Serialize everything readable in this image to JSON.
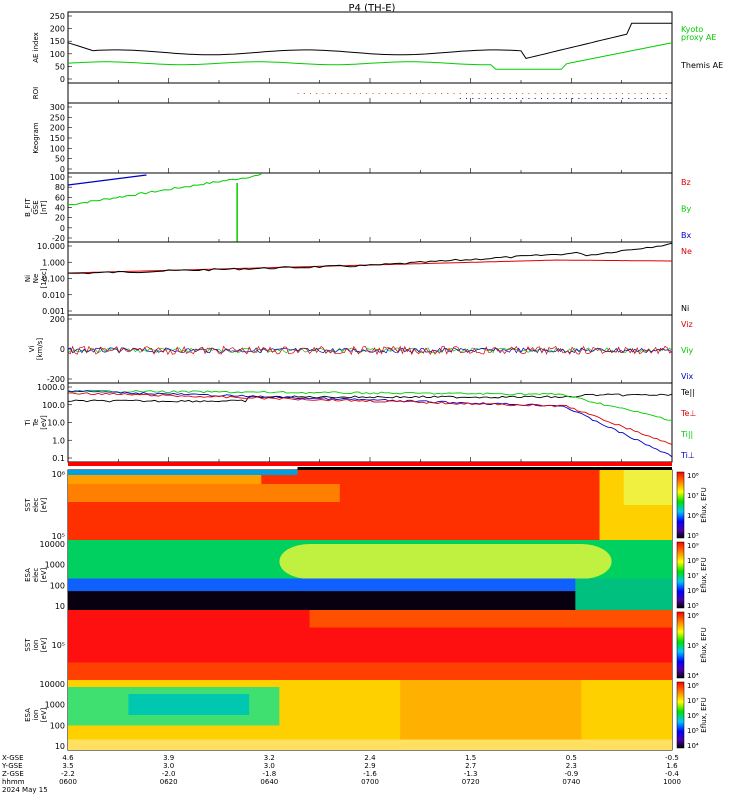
{
  "title": "P4 (TH-E)",
  "chart_data": {
    "type": "line",
    "title": "P4 (TH-E)",
    "date": "2024 May 15",
    "time_ticks": [
      "0600",
      "0620",
      "0640",
      "0700",
      "0720",
      "0740",
      "1000"
    ],
    "ephemeris_rows": [
      {
        "label": "X-GSE",
        "values": [
          "4.6",
          "3.9",
          "3.2",
          "2.4",
          "1.5",
          "0.5",
          "-0.5"
        ]
      },
      {
        "label": "Y-GSE",
        "values": [
          "3.5",
          "3.0",
          "3.0",
          "2.9",
          "2.7",
          "2.3",
          "1.6"
        ]
      },
      {
        "label": "Z-GSE",
        "values": [
          "-2.2",
          "-2.0",
          "-1.8",
          "-1.6",
          "-1.3",
          "-0.9",
          "-0.4"
        ]
      },
      {
        "label": "hhmm",
        "values": [
          "0600",
          "0620",
          "0640",
          "0700",
          "0720",
          "0740",
          "1000"
        ]
      }
    ],
    "panels": [
      {
        "id": "ae",
        "ylabel": "AE index",
        "yticks": [
          "250",
          "200",
          "150",
          "100",
          "50",
          "0"
        ],
        "series": [
          {
            "name": "Themis AE",
            "color": "#000000"
          },
          {
            "name": "Kyoto proxy AE",
            "color": "#00cc00"
          }
        ],
        "legend": [
          "Kyoto",
          "proxy AE",
          "Themis AE"
        ]
      },
      {
        "id": "roi",
        "ylabel": "ROI",
        "yticks": []
      },
      {
        "id": "keogram",
        "ylabel": "Keogram",
        "yticks": [
          "300",
          "250",
          "200",
          "150",
          "100",
          "50",
          "0"
        ]
      },
      {
        "id": "bfield",
        "ylabel": "B_FIT\nGSE\n[nT]",
        "yticks": [
          "100",
          "80",
          "60",
          "40",
          "20",
          "0",
          "-20"
        ],
        "legend": [
          {
            "name": "Bz",
            "color": "#dd0000"
          },
          {
            "name": "By",
            "color": "#00cc00"
          },
          {
            "name": "Bx",
            "color": "#0000cc"
          }
        ]
      },
      {
        "id": "density",
        "ylabel": "Ni\nNe\n[1/cc]",
        "yticks": [
          "10.000",
          "1.000",
          "0.100",
          "0.010",
          "0.001"
        ],
        "legend": [
          {
            "name": "Ne",
            "color": "#dd0000"
          },
          {
            "name": "Ni",
            "color": "#000000"
          }
        ]
      },
      {
        "id": "velocity",
        "ylabel": "Vi\n[km/s]",
        "yticks": [
          "200",
          "0",
          "-200"
        ],
        "legend": [
          {
            "name": "Viz",
            "color": "#dd0000"
          },
          {
            "name": "Viy",
            "color": "#00cc00"
          },
          {
            "name": "Vix",
            "color": "#0000cc"
          }
        ]
      },
      {
        "id": "temp",
        "ylabel": "Ti\nTe\n[eV]",
        "yticks": [
          "1000.0",
          "100.0",
          "10.0",
          "1.0",
          "0.1"
        ],
        "legend": [
          {
            "name": "Te||",
            "color": "#000000"
          },
          {
            "name": "Te⊥",
            "color": "#dd0000"
          },
          {
            "name": "Ti||",
            "color": "#00cc00"
          },
          {
            "name": "Ti⊥",
            "color": "#0000cc"
          }
        ]
      },
      {
        "id": "sst_e",
        "ylabel": "SST\nelec\n[eV]",
        "yticks": [
          "10⁶",
          "10⁵"
        ],
        "colorbar": "Eflux, EFU",
        "cbar_ticks": [
          "10⁸",
          "10⁷",
          "10⁶",
          "10⁵"
        ]
      },
      {
        "id": "esa_e",
        "ylabel": "ESA\nelec\n[eV]",
        "yticks": [
          "10000",
          "1000",
          "100",
          "10"
        ],
        "colorbar": "Eflux, EFU",
        "cbar_ticks": [
          "10⁹",
          "10⁸",
          "10⁷",
          "10⁶",
          "10⁵"
        ]
      },
      {
        "id": "sst_i",
        "ylabel": "SST\nion\n[eV]",
        "yticks": [
          "10⁵"
        ],
        "colorbar": "Eflux, EFU",
        "cbar_ticks": [
          "10⁶",
          "10⁵",
          "10⁴"
        ]
      },
      {
        "id": "esa_i",
        "ylabel": "ESA\nion\n[eV]",
        "yticks": [
          "10000",
          "1000",
          "100",
          "10"
        ],
        "colorbar": "Eflux, EFU",
        "cbar_ticks": [
          "10⁸",
          "10⁷",
          "10⁶",
          "10⁵",
          "10⁴"
        ]
      }
    ]
  }
}
